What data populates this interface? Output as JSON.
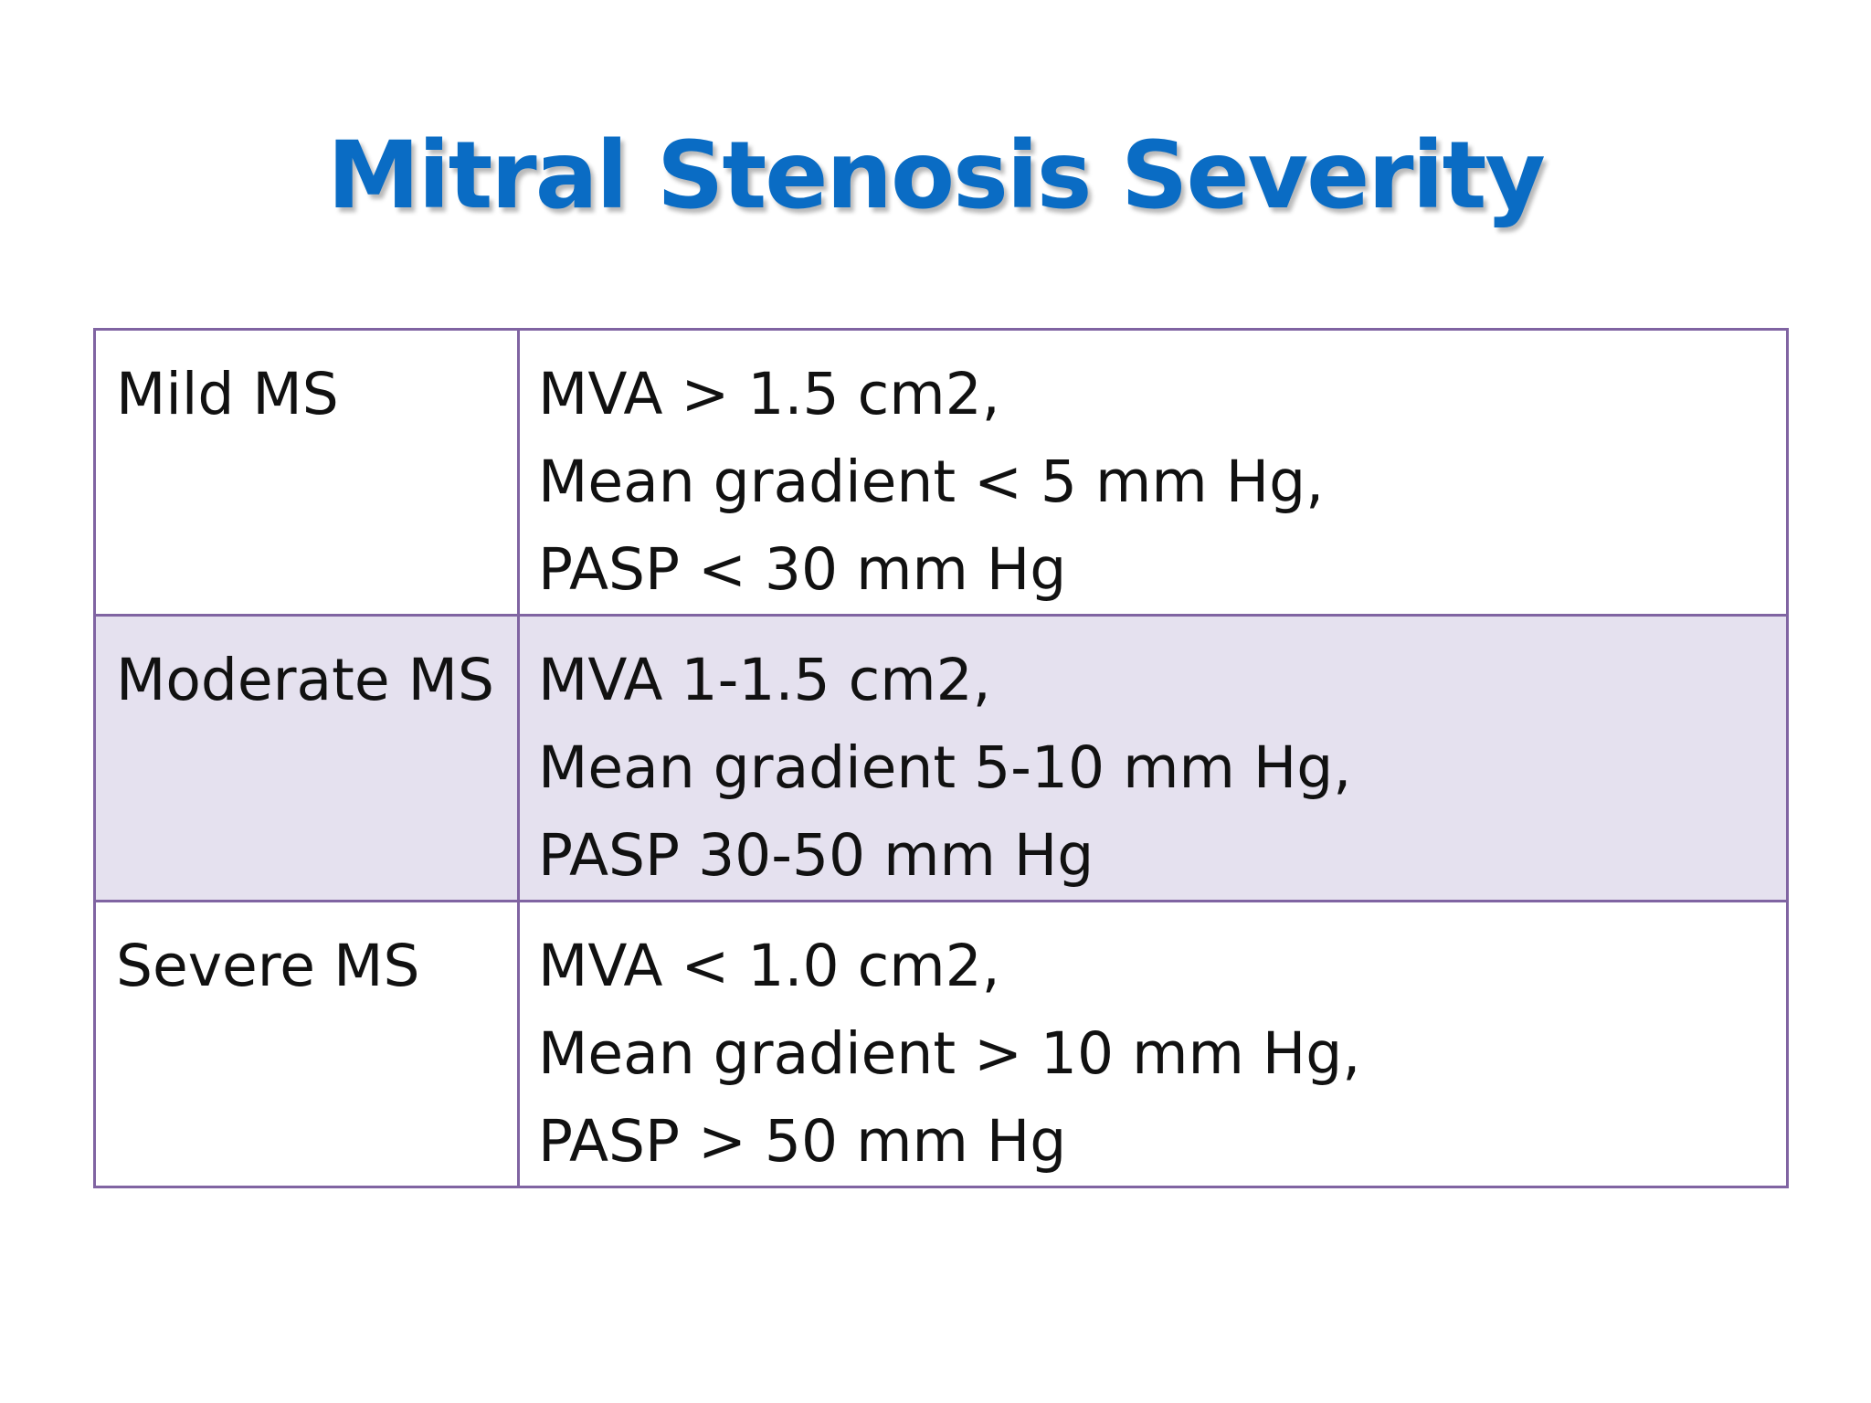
{
  "slide": {
    "title": "Mitral Stenosis Severity",
    "title_color": "#0a6cc4",
    "border_color": "#8064a2",
    "shaded_row_color": "#e5e1ef"
  },
  "table": {
    "rows": [
      {
        "severity": "Mild MS",
        "criteria": [
          "MVA > 1.5 cm2,",
          "Mean gradient < 5 mm Hg,",
          "PASP < 30 mm Hg"
        ]
      },
      {
        "severity": "Moderate MS",
        "criteria": [
          "MVA 1-1.5 cm2,",
          "Mean gradient 5-10 mm Hg,",
          "PASP 30-50 mm Hg"
        ]
      },
      {
        "severity": "Severe MS",
        "criteria": [
          "MVA < 1.0 cm2,",
          "Mean gradient > 10 mm Hg,",
          "PASP > 50 mm Hg"
        ]
      }
    ]
  }
}
